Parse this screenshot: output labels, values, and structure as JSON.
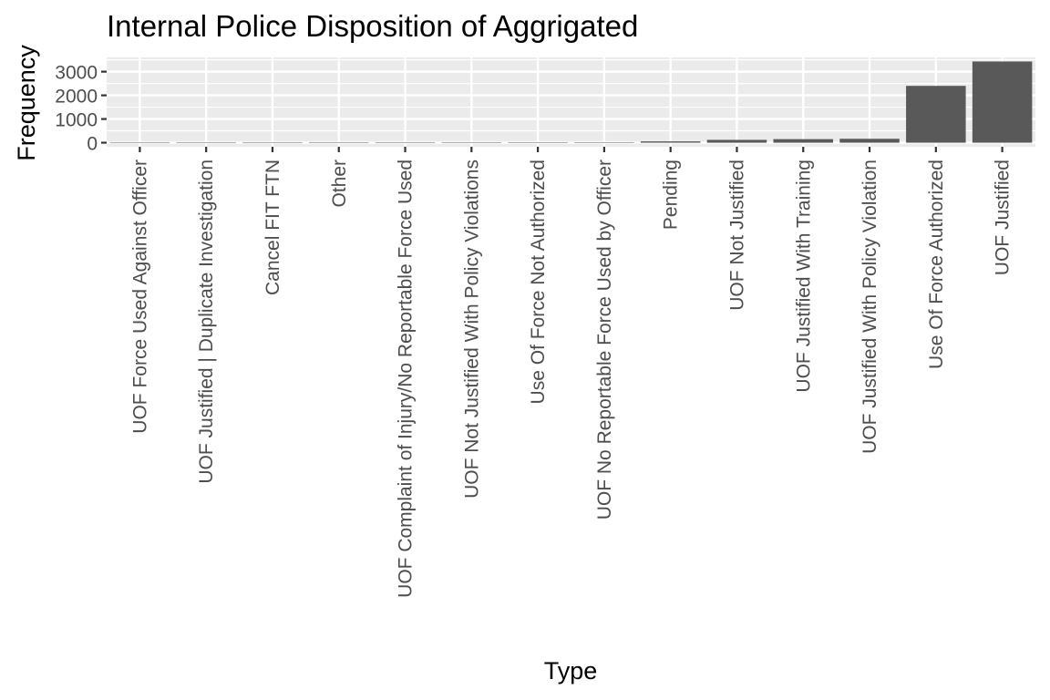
{
  "chart_data": {
    "type": "bar",
    "title": "Internal Police Disposition of Aggrigated",
    "xlabel": "Type",
    "ylabel": "Frequency",
    "categories": [
      "UOF Force Used Against Officer",
      "UOF Justified | Duplicate Investigation",
      "Cancel FIT FTN",
      "Other",
      "UOF Complaint of Injury/No Reportable Force Used",
      "UOF Not Justified With Policy Violations",
      "Use Of Force Not Authorized",
      "UOF No Reportable Force Used by Officer",
      "Pending",
      "UOF Not Justified",
      "UOF Justified With Training",
      "UOF Justified With Policy Violation",
      "Use Of Force Authorized",
      "UOF Justified"
    ],
    "values": [
      1,
      1,
      1,
      2,
      2,
      2,
      3,
      4,
      55,
      120,
      150,
      165,
      2400,
      3430
    ],
    "yticks": [
      0,
      1000,
      2000,
      3000
    ],
    "ylim": [
      -171,
      3601
    ],
    "grid": true,
    "colors": {
      "bar": "#595959",
      "panel": "#ebebeb",
      "grid_major": "#ffffff",
      "text": "#000000",
      "tick_text": "#4d4d4d",
      "tick_mark": "#333333"
    }
  }
}
